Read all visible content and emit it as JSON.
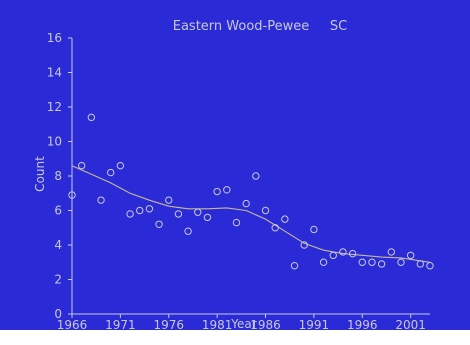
{
  "chart_data": {
    "type": "scatter",
    "title": "Eastern Wood-Pewee     SC",
    "xlabel": "Year",
    "ylabel": "Count",
    "xlim": [
      1966,
      2003
    ],
    "ylim": [
      0,
      16
    ],
    "x_ticks": [
      1966,
      1971,
      1976,
      1981,
      1986,
      1991,
      1996,
      2001
    ],
    "y_ticks": [
      0,
      2,
      4,
      6,
      8,
      10,
      12,
      14,
      16
    ],
    "grid": false,
    "colors": {
      "background": "#2a2ad6",
      "axes": "#c8c8d8",
      "text": "#c8c8d8",
      "points": "#c8c8d8",
      "trend": "#c8b898"
    },
    "points": [
      {
        "x": 1966,
        "y": 6.9
      },
      {
        "x": 1967,
        "y": 8.6
      },
      {
        "x": 1968,
        "y": 11.4
      },
      {
        "x": 1969,
        "y": 6.6
      },
      {
        "x": 1970,
        "y": 8.2
      },
      {
        "x": 1971,
        "y": 8.6
      },
      {
        "x": 1972,
        "y": 5.8
      },
      {
        "x": 1973,
        "y": 6.0
      },
      {
        "x": 1974,
        "y": 6.1
      },
      {
        "x": 1975,
        "y": 5.2
      },
      {
        "x": 1976,
        "y": 6.6
      },
      {
        "x": 1977,
        "y": 5.8
      },
      {
        "x": 1978,
        "y": 4.8
      },
      {
        "x": 1979,
        "y": 5.9
      },
      {
        "x": 1980,
        "y": 5.6
      },
      {
        "x": 1981,
        "y": 7.1
      },
      {
        "x": 1982,
        "y": 7.2
      },
      {
        "x": 1983,
        "y": 5.3
      },
      {
        "x": 1984,
        "y": 6.4
      },
      {
        "x": 1985,
        "y": 8.0
      },
      {
        "x": 1986,
        "y": 6.0
      },
      {
        "x": 1987,
        "y": 5.0
      },
      {
        "x": 1988,
        "y": 5.5
      },
      {
        "x": 1989,
        "y": 2.8
      },
      {
        "x": 1990,
        "y": 4.0
      },
      {
        "x": 1991,
        "y": 4.9
      },
      {
        "x": 1992,
        "y": 3.0
      },
      {
        "x": 1993,
        "y": 3.4
      },
      {
        "x": 1994,
        "y": 3.6
      },
      {
        "x": 1995,
        "y": 3.5
      },
      {
        "x": 1996,
        "y": 3.0
      },
      {
        "x": 1997,
        "y": 3.0
      },
      {
        "x": 1998,
        "y": 2.9
      },
      {
        "x": 1999,
        "y": 3.6
      },
      {
        "x": 2000,
        "y": 3.0
      },
      {
        "x": 2001,
        "y": 3.4
      },
      {
        "x": 2002,
        "y": 2.9
      },
      {
        "x": 2003,
        "y": 2.8
      }
    ],
    "trend": [
      {
        "x": 1966,
        "y": 8.6
      },
      {
        "x": 1968,
        "y": 8.1
      },
      {
        "x": 1970,
        "y": 7.6
      },
      {
        "x": 1972,
        "y": 7.0
      },
      {
        "x": 1974,
        "y": 6.6
      },
      {
        "x": 1976,
        "y": 6.25
      },
      {
        "x": 1978,
        "y": 6.1
      },
      {
        "x": 1980,
        "y": 6.1
      },
      {
        "x": 1982,
        "y": 6.15
      },
      {
        "x": 1984,
        "y": 6.0
      },
      {
        "x": 1986,
        "y": 5.5
      },
      {
        "x": 1988,
        "y": 4.8
      },
      {
        "x": 1990,
        "y": 4.1
      },
      {
        "x": 1992,
        "y": 3.7
      },
      {
        "x": 1994,
        "y": 3.5
      },
      {
        "x": 1996,
        "y": 3.4
      },
      {
        "x": 1998,
        "y": 3.3
      },
      {
        "x": 2000,
        "y": 3.25
      },
      {
        "x": 2003,
        "y": 3.0
      }
    ]
  }
}
